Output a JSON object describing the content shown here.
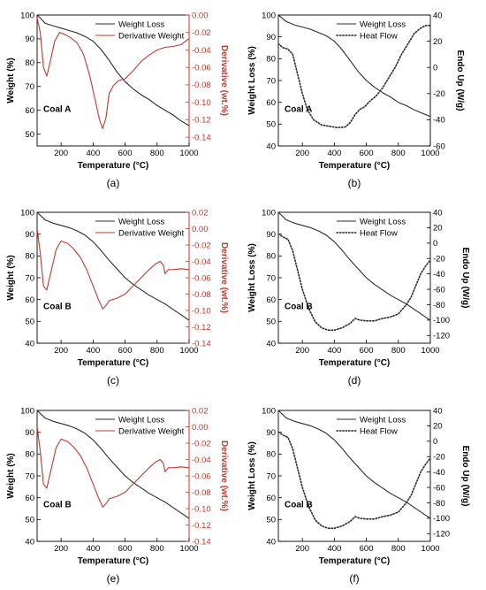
{
  "colors": {
    "weight_loss": "#2b2b2b",
    "derivative": "#c0392b",
    "heat_flow": "#2b2b2b",
    "axis": "#000000"
  },
  "chart_data": [
    {
      "id": "a",
      "type": "line",
      "caption": "(a)",
      "annotation": "Coal A",
      "xlabel": "Temperature (°C)",
      "ylabel_left": "Weight (%)",
      "ylabel_right": "Derivative (wt.%)",
      "xlim": [
        50,
        1000
      ],
      "ylim_left": [
        45,
        100
      ],
      "ylim_right": [
        -0.15,
        0
      ],
      "xticks": [
        200,
        400,
        600,
        800,
        1000
      ],
      "yticks_left": [
        50,
        60,
        70,
        80,
        90,
        100
      ],
      "yticks_right": [
        0.0,
        -0.02,
        -0.04,
        -0.06,
        -0.08,
        -0.1,
        -0.12,
        -0.14
      ],
      "ytick_labels_right": [
        "0.00",
        "-0.02",
        "-0.04",
        "-0.06",
        "-0.08",
        "-0.10",
        "-0.12",
        "-0.14"
      ],
      "legend": [
        "Weight Loss",
        "Derivative Weight"
      ],
      "legend_position": "top-right",
      "series": [
        {
          "name": "Weight Loss",
          "axis": "left",
          "style": "solid",
          "x": [
            50,
            80,
            100,
            150,
            200,
            250,
            300,
            350,
            400,
            450,
            500,
            550,
            600,
            650,
            700,
            750,
            800,
            850,
            900,
            950,
            1000
          ],
          "y": [
            100,
            98,
            96.5,
            95.5,
            94.5,
            93.5,
            92.5,
            91,
            89,
            85.5,
            81,
            76,
            72,
            69,
            66.5,
            64.5,
            62,
            60,
            58,
            55.5,
            53.5
          ]
        },
        {
          "name": "Derivative Weight",
          "axis": "right",
          "style": "solid",
          "x": [
            50,
            70,
            90,
            110,
            130,
            160,
            190,
            220,
            260,
            300,
            340,
            380,
            410,
            440,
            460,
            480,
            500,
            530,
            560,
            600,
            650,
            700,
            750,
            800,
            850,
            900,
            950,
            1000
          ],
          "y": [
            -0.003,
            -0.02,
            -0.06,
            -0.07,
            -0.055,
            -0.03,
            -0.02,
            -0.022,
            -0.026,
            -0.032,
            -0.045,
            -0.07,
            -0.095,
            -0.12,
            -0.13,
            -0.118,
            -0.09,
            -0.08,
            -0.075,
            -0.073,
            -0.064,
            -0.053,
            -0.046,
            -0.04,
            -0.037,
            -0.036,
            -0.034,
            -0.027
          ]
        }
      ]
    },
    {
      "id": "b",
      "type": "line",
      "caption": "(b)",
      "annotation": "Coal A",
      "xlabel": "Temperature (°C)",
      "ylabel_left": "Weight Loss (%)",
      "ylabel_right": "Endo Up (W/g)",
      "xlim": [
        50,
        1000
      ],
      "ylim_left": [
        40,
        100
      ],
      "ylim_right": [
        -60,
        40
      ],
      "xticks": [
        200,
        400,
        600,
        800,
        1000
      ],
      "yticks_left": [
        40,
        50,
        60,
        70,
        80,
        90,
        100
      ],
      "yticks_right": [
        40,
        20,
        0,
        -20,
        -40,
        -60
      ],
      "ytick_labels_right": [
        "40",
        "20",
        "0",
        "-20",
        "-40",
        "-60"
      ],
      "legend": [
        "Weight Loss",
        "Heat Flow"
      ],
      "legend_position": "top-right",
      "series": [
        {
          "name": "Weight Loss",
          "axis": "left",
          "style": "solid",
          "x": [
            50,
            100,
            150,
            200,
            250,
            300,
            350,
            400,
            450,
            500,
            550,
            600,
            650,
            700,
            750,
            800,
            850,
            900,
            950,
            1000
          ],
          "y": [
            100,
            97,
            95.5,
            94.5,
            93.5,
            92,
            90.5,
            88,
            84,
            79,
            74,
            70,
            67,
            64.5,
            62.5,
            60,
            58.5,
            56.5,
            55,
            53.5
          ]
        },
        {
          "name": "Heat Flow",
          "axis": "right",
          "style": "dotted",
          "x": [
            50,
            80,
            110,
            140,
            170,
            200,
            230,
            270,
            320,
            370,
            420,
            470,
            500,
            530,
            560,
            590,
            620,
            660,
            700,
            740,
            780,
            820,
            860,
            900,
            940,
            970,
            1000
          ],
          "y": [
            18,
            15,
            14,
            10,
            -5,
            -20,
            -32,
            -40,
            -44,
            -45,
            -46,
            -45.5,
            -42,
            -36,
            -32,
            -30,
            -26,
            -22,
            -16,
            -8,
            0,
            10,
            18,
            26,
            30,
            32,
            32
          ]
        }
      ]
    },
    {
      "id": "c",
      "type": "line",
      "caption": "(c)",
      "annotation": "Coal B",
      "xlabel": "Temperature (°C)",
      "ylabel_left": "Weight (%)",
      "ylabel_right": "Derivative (wt.%)",
      "xlim": [
        50,
        1000
      ],
      "ylim_left": [
        40,
        100
      ],
      "ylim_right": [
        -0.14,
        0.02
      ],
      "xticks": [
        200,
        400,
        600,
        800,
        1000
      ],
      "yticks_left": [
        40,
        50,
        60,
        70,
        80,
        90,
        100
      ],
      "yticks_right": [
        0.02,
        0.0,
        -0.02,
        -0.04,
        -0.06,
        -0.08,
        -0.1,
        -0.12,
        -0.14
      ],
      "ytick_labels_right": [
        "0.02",
        "0.00",
        "-0.02",
        "-0.04",
        "-0.06",
        "-0.08",
        "-0.10",
        "-0.12",
        "-0.14"
      ],
      "legend": [
        "Weight Loss",
        "Derivative Weight"
      ],
      "legend_position": "top-right",
      "series": [
        {
          "name": "Weight Loss",
          "axis": "left",
          "style": "solid",
          "x": [
            50,
            100,
            150,
            200,
            250,
            300,
            350,
            400,
            450,
            500,
            550,
            600,
            650,
            700,
            750,
            800,
            850,
            900,
            950,
            1000
          ],
          "y": [
            100,
            96.5,
            95,
            94,
            93,
            91.5,
            89.5,
            86.5,
            82.5,
            78,
            74,
            70,
            67,
            64.5,
            62,
            60,
            58,
            55.5,
            53,
            50.5
          ]
        },
        {
          "name": "Derivative Weight",
          "axis": "right",
          "style": "solid",
          "x": [
            50,
            70,
            90,
            110,
            140,
            170,
            200,
            240,
            280,
            320,
            360,
            400,
            430,
            460,
            480,
            500,
            550,
            600,
            650,
            700,
            750,
            790,
            820,
            840,
            850,
            870,
            900,
            950,
            1000
          ],
          "y": [
            0.0,
            -0.03,
            -0.07,
            -0.075,
            -0.05,
            -0.025,
            -0.015,
            -0.018,
            -0.025,
            -0.035,
            -0.05,
            -0.07,
            -0.085,
            -0.098,
            -0.094,
            -0.088,
            -0.085,
            -0.08,
            -0.07,
            -0.06,
            -0.05,
            -0.043,
            -0.04,
            -0.045,
            -0.055,
            -0.05,
            -0.05,
            -0.049,
            -0.05
          ]
        }
      ]
    },
    {
      "id": "d",
      "type": "line",
      "caption": "(d)",
      "annotation": "Coal B",
      "xlabel": "Temperature (°C)",
      "ylabel_left": "Weight Loss (%)",
      "ylabel_right": "Endo Up (W/g)",
      "xlim": [
        50,
        1000
      ],
      "ylim_left": [
        40,
        100
      ],
      "ylim_right": [
        -130,
        40
      ],
      "xticks": [
        200,
        400,
        600,
        800,
        1000
      ],
      "yticks_left": [
        40,
        50,
        60,
        70,
        80,
        90,
        100
      ],
      "yticks_right": [
        40,
        20,
        0,
        -20,
        -40,
        -60,
        -80,
        -100,
        -120
      ],
      "ytick_labels_right": [
        "40",
        "20",
        "0",
        "-20",
        "-40",
        "-60",
        "-80",
        "-100",
        "-120"
      ],
      "legend": [
        "Weight Loss",
        "Heat Flow"
      ],
      "legend_position": "top-right",
      "series": [
        {
          "name": "Weight Loss",
          "axis": "left",
          "style": "solid",
          "x": [
            50,
            100,
            150,
            200,
            250,
            300,
            350,
            400,
            450,
            500,
            550,
            600,
            650,
            700,
            750,
            800,
            850,
            900,
            950,
            1000
          ],
          "y": [
            100,
            96.5,
            95,
            94,
            93,
            91.5,
            89.5,
            86.5,
            82.5,
            78,
            74,
            70,
            67,
            64.5,
            62,
            60,
            58,
            55.5,
            53,
            50.5
          ]
        },
        {
          "name": "Heat Flow",
          "axis": "right",
          "style": "dotted",
          "x": [
            50,
            80,
            110,
            140,
            170,
            200,
            240,
            280,
            320,
            360,
            400,
            450,
            500,
            530,
            560,
            600,
            650,
            700,
            750,
            800,
            850,
            880,
            910,
            940,
            970,
            1000
          ],
          "y": [
            12,
            8,
            5,
            -10,
            -35,
            -60,
            -85,
            -102,
            -110,
            -113,
            -113,
            -110,
            -104,
            -98,
            -100,
            -101,
            -101,
            -98,
            -96,
            -92,
            -80,
            -70,
            -55,
            -40,
            -30,
            -22
          ]
        }
      ]
    },
    {
      "id": "e",
      "type": "line",
      "caption": "(e)",
      "annotation": "Coal B",
      "xlabel": "Temperature (°C)",
      "ylabel_left": "Weight (%)",
      "ylabel_right": "Derivative (wt.%)",
      "xlim": [
        50,
        1000
      ],
      "ylim_left": [
        40,
        100
      ],
      "ylim_right": [
        -0.14,
        0.02
      ],
      "xticks": [
        200,
        400,
        600,
        800,
        1000
      ],
      "yticks_left": [
        40,
        50,
        60,
        70,
        80,
        90,
        100
      ],
      "yticks_right": [
        0.02,
        0.0,
        -0.02,
        -0.04,
        -0.06,
        -0.08,
        -0.1,
        -0.12,
        -0.14
      ],
      "ytick_labels_right": [
        "0.02",
        "0.00",
        "-0.02",
        "-0.04",
        "-0.06",
        "-0.08",
        "-0.10",
        "-0.12",
        "-0.14"
      ],
      "legend": [
        "Weight Loss",
        "Derivative Weight"
      ],
      "legend_position": "top-right",
      "series": [
        {
          "name": "Weight Loss",
          "axis": "left",
          "style": "solid",
          "x": [
            50,
            100,
            150,
            200,
            250,
            300,
            350,
            400,
            450,
            500,
            550,
            600,
            650,
            700,
            750,
            800,
            850,
            900,
            950,
            1000
          ],
          "y": [
            100,
            96.5,
            95,
            94,
            93,
            91.5,
            89.5,
            86.5,
            82.5,
            78,
            74,
            70,
            67,
            64.5,
            62,
            60,
            58,
            55.5,
            53,
            50.5
          ]
        },
        {
          "name": "Derivative Weight",
          "axis": "right",
          "style": "solid",
          "x": [
            50,
            70,
            90,
            110,
            140,
            170,
            200,
            240,
            280,
            320,
            360,
            400,
            430,
            460,
            480,
            500,
            550,
            600,
            650,
            700,
            750,
            790,
            820,
            840,
            850,
            870,
            900,
            950,
            1000
          ],
          "y": [
            0.0,
            -0.03,
            -0.07,
            -0.075,
            -0.05,
            -0.025,
            -0.015,
            -0.018,
            -0.025,
            -0.035,
            -0.05,
            -0.07,
            -0.085,
            -0.098,
            -0.094,
            -0.088,
            -0.085,
            -0.08,
            -0.07,
            -0.06,
            -0.05,
            -0.043,
            -0.04,
            -0.045,
            -0.055,
            -0.05,
            -0.05,
            -0.049,
            -0.05
          ]
        }
      ]
    },
    {
      "id": "f",
      "type": "line",
      "caption": "(f)",
      "annotation": "Coal B",
      "xlabel": "Temperature (°C)",
      "ylabel_left": "Weight Loss (%)",
      "ylabel_right": "Endo Up (W/g)",
      "xlim": [
        50,
        1000
      ],
      "ylim_left": [
        40,
        100
      ],
      "ylim_right": [
        -130,
        40
      ],
      "xticks": [
        200,
        400,
        600,
        800,
        1000
      ],
      "yticks_left": [
        40,
        50,
        60,
        70,
        80,
        90,
        100
      ],
      "yticks_right": [
        40,
        20,
        0,
        -20,
        -40,
        -60,
        -80,
        -100,
        -120
      ],
      "ytick_labels_right": [
        "40",
        "20",
        "0",
        "-20",
        "-40",
        "-60",
        "-80",
        "-100",
        "-120"
      ],
      "legend": [
        "Weight Loss",
        "Heat Flow"
      ],
      "legend_position": "top-right",
      "series": [
        {
          "name": "Weight Loss",
          "axis": "left",
          "style": "solid",
          "x": [
            50,
            100,
            150,
            200,
            250,
            300,
            350,
            400,
            450,
            500,
            550,
            600,
            650,
            700,
            750,
            800,
            850,
            900,
            950,
            1000
          ],
          "y": [
            100,
            96.5,
            95,
            94,
            93,
            91.5,
            89.5,
            86.5,
            82.5,
            78,
            74,
            70,
            67,
            64.5,
            62,
            60,
            58,
            55.5,
            53,
            50.5
          ]
        },
        {
          "name": "Heat Flow",
          "axis": "right",
          "style": "dotted",
          "x": [
            50,
            80,
            110,
            140,
            170,
            200,
            240,
            280,
            320,
            360,
            400,
            450,
            500,
            530,
            560,
            600,
            650,
            700,
            750,
            800,
            850,
            880,
            910,
            940,
            970,
            1000
          ],
          "y": [
            12,
            8,
            5,
            -10,
            -35,
            -60,
            -85,
            -102,
            -110,
            -113,
            -113,
            -110,
            -104,
            -98,
            -100,
            -101,
            -101,
            -98,
            -96,
            -92,
            -80,
            -70,
            -55,
            -40,
            -30,
            -22
          ]
        }
      ]
    }
  ]
}
